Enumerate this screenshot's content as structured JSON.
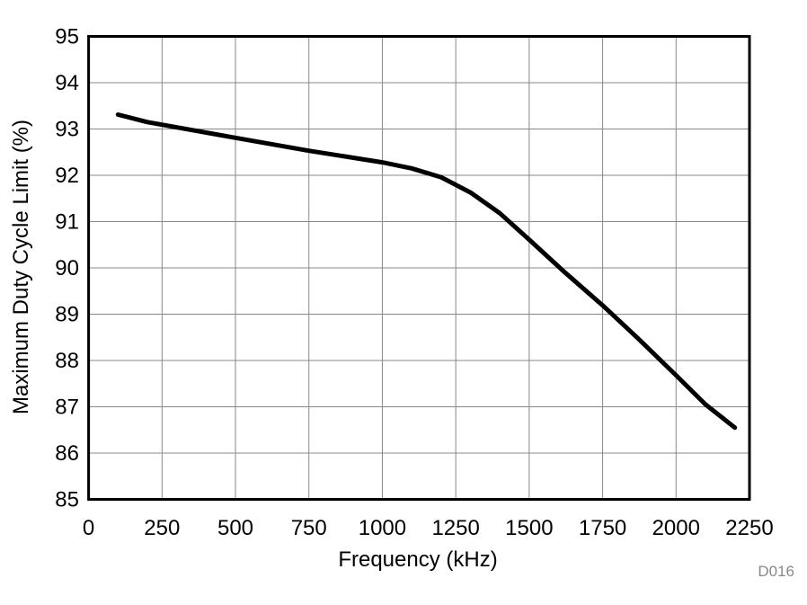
{
  "chart_data": {
    "type": "line",
    "title": "",
    "xlabel": "Frequency (kHz)",
    "ylabel": "Maximum Duty Cycle Limit (%)",
    "xlim": [
      0,
      2250
    ],
    "ylim": [
      85,
      95
    ],
    "xticks": [
      0,
      250,
      500,
      750,
      1000,
      1250,
      1500,
      1750,
      2000,
      2250
    ],
    "yticks": [
      85,
      86,
      87,
      88,
      89,
      90,
      91,
      92,
      93,
      94,
      95
    ],
    "grid": true,
    "line_color": "#000000",
    "series": [
      {
        "x": [
          100,
          200,
          500,
          750,
          1000,
          1100,
          1200,
          1300,
          1400,
          1500,
          1620,
          1750,
          1870,
          2000,
          2100,
          2200
        ],
        "y": [
          93.31,
          93.15,
          92.81,
          92.53,
          92.28,
          92.15,
          91.96,
          91.63,
          91.18,
          90.61,
          89.91,
          89.19,
          88.48,
          87.68,
          87.05,
          86.55
        ]
      }
    ],
    "annotation": "D016"
  }
}
